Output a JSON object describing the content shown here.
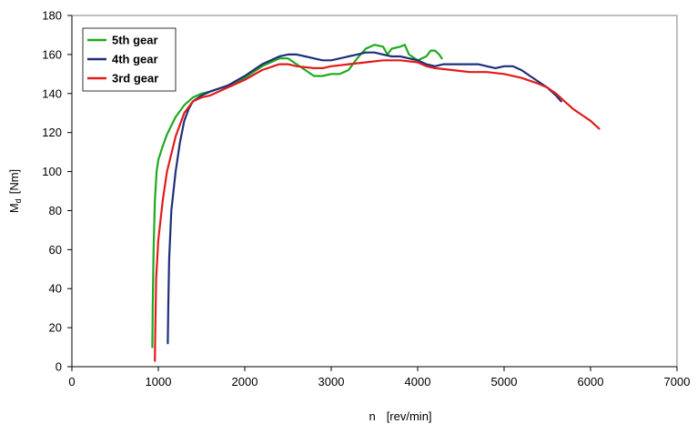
{
  "chart_data": {
    "type": "line",
    "title": "",
    "xlabel": "n",
    "xlabel_unit": "[rev/min]",
    "ylabel_main": "M",
    "ylabel_sub": "d",
    "ylabel_unit": "[Nm]",
    "xlim": [
      0,
      7000
    ],
    "ylim": [
      0,
      180
    ],
    "xticks": [
      0,
      1000,
      2000,
      3000,
      4000,
      5000,
      6000,
      7000
    ],
    "yticks": [
      0,
      20,
      40,
      60,
      80,
      100,
      120,
      140,
      160,
      180
    ],
    "xtick_labels": [
      "0",
      "1000",
      "2000",
      "3000",
      "4000",
      "5000",
      "6000",
      "7000"
    ],
    "ytick_labels": [
      "0",
      "20",
      "40",
      "60",
      "80",
      "100",
      "120",
      "140",
      "160",
      "180"
    ],
    "grid": false,
    "legend_position": "top-left",
    "series": [
      {
        "name": "5th gear",
        "color": "#1daa1d",
        "points": [
          [
            930,
            10
          ],
          [
            935,
            30
          ],
          [
            945,
            60
          ],
          [
            960,
            85
          ],
          [
            980,
            100
          ],
          [
            1000,
            106
          ],
          [
            1050,
            113
          ],
          [
            1100,
            119
          ],
          [
            1200,
            128
          ],
          [
            1300,
            134
          ],
          [
            1400,
            138
          ],
          [
            1500,
            140
          ],
          [
            1600,
            141
          ],
          [
            1800,
            144
          ],
          [
            2000,
            148
          ],
          [
            2200,
            154
          ],
          [
            2400,
            158
          ],
          [
            2500,
            158
          ],
          [
            2600,
            155
          ],
          [
            2700,
            152
          ],
          [
            2800,
            149
          ],
          [
            2900,
            149
          ],
          [
            3000,
            150
          ],
          [
            3100,
            150
          ],
          [
            3200,
            152
          ],
          [
            3300,
            158
          ],
          [
            3400,
            163
          ],
          [
            3500,
            165
          ],
          [
            3600,
            164
          ],
          [
            3650,
            160
          ],
          [
            3700,
            163
          ],
          [
            3800,
            164
          ],
          [
            3850,
            165
          ],
          [
            3900,
            160
          ],
          [
            4000,
            157
          ],
          [
            4100,
            159
          ],
          [
            4150,
            162
          ],
          [
            4200,
            162
          ],
          [
            4250,
            160
          ],
          [
            4280,
            158
          ]
        ]
      },
      {
        "name": "4th gear",
        "color": "#1f2f7a",
        "points": [
          [
            1110,
            12
          ],
          [
            1115,
            30
          ],
          [
            1125,
            55
          ],
          [
            1150,
            80
          ],
          [
            1200,
            100
          ],
          [
            1250,
            115
          ],
          [
            1300,
            126
          ],
          [
            1350,
            132
          ],
          [
            1400,
            136
          ],
          [
            1500,
            139
          ],
          [
            1600,
            141
          ],
          [
            1800,
            144
          ],
          [
            2000,
            149
          ],
          [
            2200,
            155
          ],
          [
            2400,
            159
          ],
          [
            2500,
            160
          ],
          [
            2600,
            160
          ],
          [
            2700,
            159
          ],
          [
            2800,
            158
          ],
          [
            2900,
            157
          ],
          [
            3000,
            157
          ],
          [
            3100,
            158
          ],
          [
            3200,
            159
          ],
          [
            3300,
            160
          ],
          [
            3400,
            161
          ],
          [
            3500,
            161
          ],
          [
            3600,
            160
          ],
          [
            3700,
            159
          ],
          [
            3800,
            159
          ],
          [
            3900,
            158
          ],
          [
            4000,
            157
          ],
          [
            4100,
            155
          ],
          [
            4200,
            154
          ],
          [
            4300,
            155
          ],
          [
            4400,
            155
          ],
          [
            4500,
            155
          ],
          [
            4600,
            155
          ],
          [
            4700,
            155
          ],
          [
            4800,
            154
          ],
          [
            4900,
            153
          ],
          [
            5000,
            154
          ],
          [
            5100,
            154
          ],
          [
            5200,
            152
          ],
          [
            5300,
            149
          ],
          [
            5400,
            146
          ],
          [
            5500,
            143
          ],
          [
            5600,
            139
          ],
          [
            5660,
            136
          ]
        ]
      },
      {
        "name": "3rd gear",
        "color": "#e21b1b",
        "points": [
          [
            960,
            3
          ],
          [
            965,
            20
          ],
          [
            975,
            45
          ],
          [
            1000,
            65
          ],
          [
            1050,
            85
          ],
          [
            1100,
            100
          ],
          [
            1200,
            118
          ],
          [
            1300,
            130
          ],
          [
            1400,
            136
          ],
          [
            1500,
            138
          ],
          [
            1600,
            139
          ],
          [
            1800,
            143
          ],
          [
            2000,
            147
          ],
          [
            2200,
            152
          ],
          [
            2400,
            155
          ],
          [
            2500,
            155
          ],
          [
            2600,
            154
          ],
          [
            2800,
            153
          ],
          [
            2900,
            153
          ],
          [
            3000,
            154
          ],
          [
            3200,
            155
          ],
          [
            3400,
            156
          ],
          [
            3600,
            157
          ],
          [
            3800,
            157
          ],
          [
            4000,
            156
          ],
          [
            4100,
            154
          ],
          [
            4200,
            153
          ],
          [
            4400,
            152
          ],
          [
            4600,
            151
          ],
          [
            4800,
            151
          ],
          [
            5000,
            150
          ],
          [
            5200,
            148
          ],
          [
            5400,
            145
          ],
          [
            5500,
            143
          ],
          [
            5600,
            140
          ],
          [
            5700,
            136
          ],
          [
            5800,
            132
          ],
          [
            5900,
            129
          ],
          [
            6000,
            126
          ],
          [
            6100,
            122
          ]
        ]
      }
    ]
  }
}
